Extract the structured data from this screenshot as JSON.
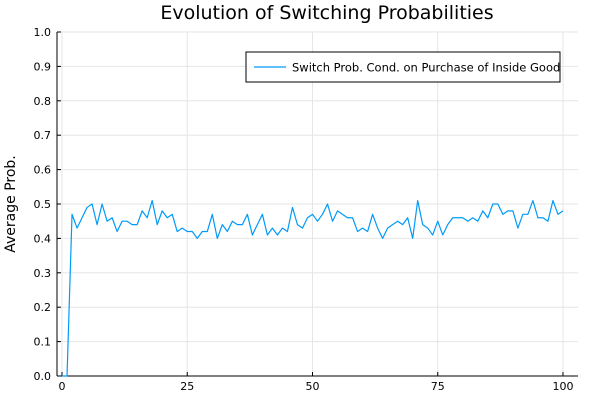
{
  "chart_data": {
    "type": "line",
    "title": "Evolution of Switching Probabilities",
    "xlabel": "",
    "ylabel": "Average Prob.",
    "xlim": [
      -1,
      103
    ],
    "ylim": [
      0,
      1
    ],
    "xticks": [
      0,
      25,
      50,
      75,
      100
    ],
    "xtick_labels": [
      "0",
      "25",
      "50",
      "75",
      "100"
    ],
    "yticks": [
      0,
      0.1,
      0.2,
      0.3,
      0.4,
      0.5,
      0.6,
      0.7,
      0.8,
      0.9,
      1.0
    ],
    "ytick_labels": [
      "0.0",
      "0.1",
      "0.2",
      "0.3",
      "0.4",
      "0.5",
      "0.6",
      "0.7",
      "0.8",
      "0.9",
      "1.0"
    ],
    "grid": true,
    "legend_position": "top-right",
    "series": [
      {
        "name": "Switch Prob. Cond. on Purchase of Inside Good",
        "color": "#009af9",
        "x": [
          0,
          1,
          2,
          3,
          4,
          5,
          6,
          7,
          8,
          9,
          10,
          11,
          12,
          13,
          14,
          15,
          16,
          17,
          18,
          19,
          20,
          21,
          22,
          23,
          24,
          25,
          26,
          27,
          28,
          29,
          30,
          31,
          32,
          33,
          34,
          35,
          36,
          37,
          38,
          39,
          40,
          41,
          42,
          43,
          44,
          45,
          46,
          47,
          48,
          49,
          50,
          51,
          52,
          53,
          54,
          55,
          56,
          57,
          58,
          59,
          60,
          61,
          62,
          63,
          64,
          65,
          66,
          67,
          68,
          69,
          70,
          71,
          72,
          73,
          74,
          75,
          76,
          77,
          78,
          79,
          80,
          81,
          82,
          83,
          84,
          85,
          86,
          87,
          88,
          89,
          90,
          91,
          92,
          93,
          94,
          95,
          96,
          97,
          98,
          99,
          100
        ],
        "values": [
          0.0,
          0.0,
          0.47,
          0.43,
          0.46,
          0.49,
          0.5,
          0.44,
          0.5,
          0.45,
          0.46,
          0.42,
          0.45,
          0.45,
          0.44,
          0.44,
          0.48,
          0.46,
          0.51,
          0.44,
          0.48,
          0.46,
          0.47,
          0.42,
          0.43,
          0.42,
          0.42,
          0.4,
          0.42,
          0.42,
          0.47,
          0.4,
          0.44,
          0.42,
          0.45,
          0.44,
          0.44,
          0.47,
          0.41,
          0.44,
          0.47,
          0.41,
          0.43,
          0.41,
          0.43,
          0.42,
          0.49,
          0.44,
          0.43,
          0.46,
          0.47,
          0.45,
          0.47,
          0.5,
          0.45,
          0.48,
          0.47,
          0.46,
          0.46,
          0.42,
          0.43,
          0.42,
          0.47,
          0.43,
          0.4,
          0.43,
          0.44,
          0.45,
          0.44,
          0.46,
          0.4,
          0.51,
          0.44,
          0.43,
          0.41,
          0.45,
          0.41,
          0.44,
          0.46,
          0.46,
          0.46,
          0.45,
          0.46,
          0.45,
          0.48,
          0.46,
          0.5,
          0.5,
          0.47,
          0.48,
          0.48,
          0.43,
          0.47,
          0.47,
          0.51,
          0.46,
          0.46,
          0.45,
          0.51,
          0.47,
          0.48
        ]
      }
    ]
  }
}
